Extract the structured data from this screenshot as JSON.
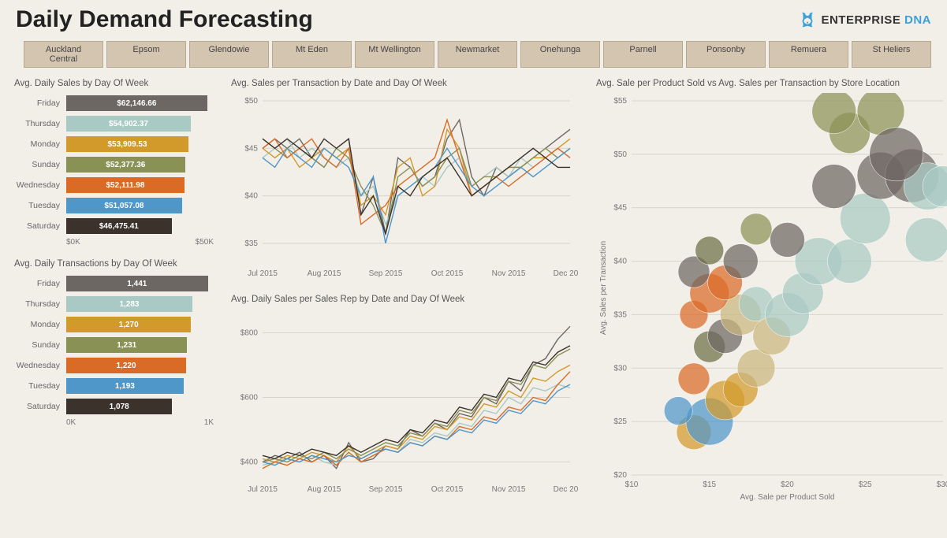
{
  "header": {
    "title": "Daily Demand Forecasting",
    "brand_prefix": "ENTERPRISE",
    "brand_suffix": "DNA"
  },
  "tabs": [
    "Auckland Central",
    "Epsom",
    "Glendowie",
    "Mt Eden",
    "Mt Wellington",
    "Newmarket",
    "Onehunga",
    "Parnell",
    "Ponsonby",
    "Remuera",
    "St Heliers"
  ],
  "colors": {
    "Friday": "#6d6763",
    "Thursday": "#a9cac4",
    "Monday": "#d29a2b",
    "Sunday": "#8a9155",
    "Wednesday": "#d96b27",
    "Tuesday": "#4f96c9",
    "Saturday": "#3b322c",
    "background": "#f2efe9",
    "grid": "#d8d4cb",
    "axis_text": "#777777"
  },
  "bar_sales": {
    "title": "Avg. Daily Sales by Day Of Week",
    "max": 65000,
    "axis": [
      "$0K",
      "$50K"
    ],
    "rows": [
      {
        "day": "Friday",
        "value": 62146.66,
        "label": "$62,146.66"
      },
      {
        "day": "Thursday",
        "value": 54902.37,
        "label": "$54,902.37"
      },
      {
        "day": "Monday",
        "value": 53909.53,
        "label": "$53,909.53"
      },
      {
        "day": "Sunday",
        "value": 52377.36,
        "label": "$52,377.36"
      },
      {
        "day": "Wednesday",
        "value": 52111.98,
        "label": "$52,111.98"
      },
      {
        "day": "Tuesday",
        "value": 51057.08,
        "label": "$51,057.08"
      },
      {
        "day": "Saturday",
        "value": 46475.41,
        "label": "$46,475.41"
      }
    ]
  },
  "bar_trans": {
    "title": "Avg. Daily Transactions by Day Of Week",
    "max": 1500,
    "axis": [
      "0K",
      "1K"
    ],
    "rows": [
      {
        "day": "Friday",
        "value": 1441,
        "label": "1,441"
      },
      {
        "day": "Thursday",
        "value": 1283,
        "label": "1,283"
      },
      {
        "day": "Monday",
        "value": 1270,
        "label": "1,270"
      },
      {
        "day": "Sunday",
        "value": 1231,
        "label": "1,231"
      },
      {
        "day": "Wednesday",
        "value": 1220,
        "label": "1,220"
      },
      {
        "day": "Tuesday",
        "value": 1193,
        "label": "1,193"
      },
      {
        "day": "Saturday",
        "value": 1078,
        "label": "1,078"
      }
    ]
  },
  "line_sales_tx": {
    "title": "Avg. Sales per Transaction by Date and Day Of Week",
    "ylim": [
      33,
      50
    ],
    "yticks": [
      35,
      40,
      45,
      50
    ],
    "ytick_labels": [
      "$35",
      "$40",
      "$45",
      "$50"
    ],
    "xlabels": [
      "Jul 2015",
      "Aug 2015",
      "Sep 2015",
      "Oct 2015",
      "Nov 2015",
      "Dec 2015"
    ],
    "n_points": 26,
    "series": {
      "Friday": [
        45,
        46,
        45,
        46,
        44,
        43,
        45,
        46,
        38,
        42,
        36,
        44,
        43,
        41,
        42,
        46,
        48,
        42,
        40,
        43,
        42,
        43,
        44,
        45,
        46,
        47
      ],
      "Thursday": [
        44,
        45,
        46,
        44,
        45,
        44,
        43,
        44,
        40,
        41,
        37,
        40,
        41,
        42,
        41,
        43,
        44,
        41,
        42,
        43,
        42,
        44,
        43,
        44,
        45,
        44
      ],
      "Monday": [
        45,
        44,
        45,
        43,
        44,
        45,
        44,
        45,
        39,
        40,
        38,
        43,
        44,
        40,
        41,
        47,
        45,
        40,
        41,
        42,
        43,
        43,
        44,
        44,
        45,
        46
      ],
      "Sunday": [
        46,
        45,
        44,
        45,
        44,
        43,
        45,
        44,
        41,
        39,
        36,
        42,
        43,
        41,
        42,
        44,
        45,
        41,
        42,
        42,
        43,
        43,
        44,
        45,
        44,
        45
      ],
      "Wednesday": [
        45,
        46,
        44,
        45,
        46,
        44,
        43,
        45,
        37,
        38,
        39,
        41,
        42,
        43,
        44,
        48,
        44,
        40,
        41,
        42,
        41,
        42,
        43,
        44,
        45,
        44
      ],
      "Tuesday": [
        44,
        43,
        45,
        44,
        43,
        45,
        44,
        43,
        40,
        42,
        35,
        40,
        41,
        42,
        43,
        45,
        43,
        41,
        40,
        41,
        42,
        43,
        42,
        43,
        44,
        45
      ],
      "Saturday": [
        46,
        45,
        46,
        45,
        44,
        46,
        45,
        46,
        38,
        40,
        36,
        41,
        40,
        42,
        43,
        44,
        42,
        40,
        41,
        42,
        43,
        44,
        45,
        44,
        43,
        43
      ]
    }
  },
  "line_rep": {
    "title": "Avg. Daily Sales per Sales Rep by Date and Day Of Week",
    "ylim": [
      350,
      850
    ],
    "yticks": [
      400,
      600,
      800
    ],
    "ytick_labels": [
      "$400",
      "$600",
      "$800"
    ],
    "xlabels": [
      "Jul 2015",
      "Aug 2015",
      "Sep 2015",
      "Oct 2015",
      "Nov 2015",
      "Dec 2015"
    ],
    "n_points": 26,
    "series": {
      "Friday": [
        400,
        420,
        410,
        430,
        400,
        420,
        380,
        460,
        400,
        410,
        450,
        440,
        500,
        480,
        520,
        500,
        550,
        540,
        600,
        580,
        650,
        620,
        700,
        720,
        780,
        820
      ],
      "Thursday": [
        390,
        400,
        410,
        400,
        420,
        400,
        390,
        430,
        400,
        420,
        440,
        430,
        470,
        460,
        490,
        480,
        520,
        510,
        560,
        550,
        600,
        580,
        630,
        620,
        640,
        630
      ],
      "Monday": [
        410,
        400,
        420,
        410,
        430,
        420,
        400,
        450,
        410,
        430,
        450,
        440,
        480,
        470,
        510,
        500,
        540,
        530,
        580,
        570,
        620,
        600,
        660,
        650,
        680,
        700
      ],
      "Sunday": [
        400,
        410,
        400,
        420,
        410,
        430,
        410,
        440,
        420,
        440,
        460,
        450,
        490,
        480,
        520,
        510,
        560,
        550,
        600,
        590,
        650,
        640,
        700,
        690,
        730,
        750
      ],
      "Wednesday": [
        380,
        400,
        390,
        410,
        400,
        420,
        390,
        430,
        400,
        420,
        440,
        430,
        460,
        450,
        480,
        470,
        510,
        500,
        540,
        530,
        570,
        560,
        600,
        590,
        640,
        680
      ],
      "Tuesday": [
        400,
        390,
        410,
        400,
        420,
        410,
        400,
        420,
        410,
        430,
        440,
        430,
        460,
        450,
        480,
        470,
        500,
        490,
        530,
        520,
        560,
        550,
        590,
        580,
        620,
        640
      ],
      "Saturday": [
        420,
        410,
        430,
        420,
        440,
        430,
        420,
        450,
        430,
        450,
        470,
        460,
        500,
        490,
        530,
        520,
        570,
        560,
        610,
        600,
        660,
        650,
        710,
        700,
        740,
        760
      ]
    }
  },
  "scatter": {
    "title": "Avg. Sale per Product Sold vs Avg. Sales per Transaction by Store Location",
    "xlabel": "Avg. Sale per Product Sold",
    "ylabel": "Avg. Sales per Transaction",
    "xlim": [
      10,
      30
    ],
    "ylim": [
      20,
      55
    ],
    "xticks": [
      10,
      15,
      20,
      25,
      30
    ],
    "xtick_labels": [
      "$10",
      "$15",
      "$20",
      "$25",
      "$30"
    ],
    "yticks": [
      20,
      25,
      30,
      35,
      40,
      45,
      50,
      55
    ],
    "ytick_labels": [
      "$20",
      "$25",
      "$30",
      "$35",
      "$40",
      "$45",
      "$50",
      "$55"
    ],
    "bubble_opacity": 0.72,
    "points": [
      {
        "x": 14,
        "y": 24,
        "r": 22,
        "c": "#d29a2b"
      },
      {
        "x": 15,
        "y": 25,
        "r": 30,
        "c": "#4f96c9"
      },
      {
        "x": 16,
        "y": 27,
        "r": 25,
        "c": "#d29a2b"
      },
      {
        "x": 14,
        "y": 29,
        "r": 20,
        "c": "#d96b27"
      },
      {
        "x": 17,
        "y": 28,
        "r": 22,
        "c": "#d29a2b"
      },
      {
        "x": 18,
        "y": 30,
        "r": 24,
        "c": "#c9b67d"
      },
      {
        "x": 15,
        "y": 32,
        "r": 20,
        "c": "#6b6f44"
      },
      {
        "x": 16,
        "y": 33,
        "r": 22,
        "c": "#6d6763"
      },
      {
        "x": 14,
        "y": 35,
        "r": 18,
        "c": "#d96b27"
      },
      {
        "x": 17,
        "y": 35,
        "r": 26,
        "c": "#c9b67d"
      },
      {
        "x": 18,
        "y": 36,
        "r": 22,
        "c": "#a9cac4"
      },
      {
        "x": 15,
        "y": 37,
        "r": 25,
        "c": "#d96b27"
      },
      {
        "x": 16,
        "y": 38,
        "r": 22,
        "c": "#d96b27"
      },
      {
        "x": 14,
        "y": 39,
        "r": 20,
        "c": "#6d6763"
      },
      {
        "x": 17,
        "y": 40,
        "r": 22,
        "c": "#6d6763"
      },
      {
        "x": 19,
        "y": 33,
        "r": 24,
        "c": "#c9b67d"
      },
      {
        "x": 20,
        "y": 35,
        "r": 28,
        "c": "#a9cac4"
      },
      {
        "x": 21,
        "y": 37,
        "r": 26,
        "c": "#a9cac4"
      },
      {
        "x": 22,
        "y": 40,
        "r": 30,
        "c": "#a9cac4"
      },
      {
        "x": 20,
        "y": 42,
        "r": 22,
        "c": "#6d6763"
      },
      {
        "x": 18,
        "y": 43,
        "r": 20,
        "c": "#8a9155"
      },
      {
        "x": 24,
        "y": 40,
        "r": 28,
        "c": "#a9cac4"
      },
      {
        "x": 25,
        "y": 44,
        "r": 32,
        "c": "#a9cac4"
      },
      {
        "x": 23,
        "y": 47,
        "r": 28,
        "c": "#6d6763"
      },
      {
        "x": 26,
        "y": 48,
        "r": 30,
        "c": "#6d6763"
      },
      {
        "x": 28,
        "y": 48,
        "r": 34,
        "c": "#6d6763"
      },
      {
        "x": 29,
        "y": 47,
        "r": 30,
        "c": "#a9cac4"
      },
      {
        "x": 24,
        "y": 52,
        "r": 26,
        "c": "#8a9155"
      },
      {
        "x": 23,
        "y": 54,
        "r": 28,
        "c": "#8a9155"
      },
      {
        "x": 26,
        "y": 54,
        "r": 30,
        "c": "#8a9155"
      },
      {
        "x": 27,
        "y": 50,
        "r": 34,
        "c": "#6d6763"
      },
      {
        "x": 29,
        "y": 42,
        "r": 28,
        "c": "#a9cac4"
      },
      {
        "x": 30,
        "y": 47,
        "r": 26,
        "c": "#a9cac4"
      },
      {
        "x": 13,
        "y": 26,
        "r": 18,
        "c": "#4f96c9"
      },
      {
        "x": 15,
        "y": 41,
        "r": 18,
        "c": "#6b6f44"
      }
    ]
  }
}
